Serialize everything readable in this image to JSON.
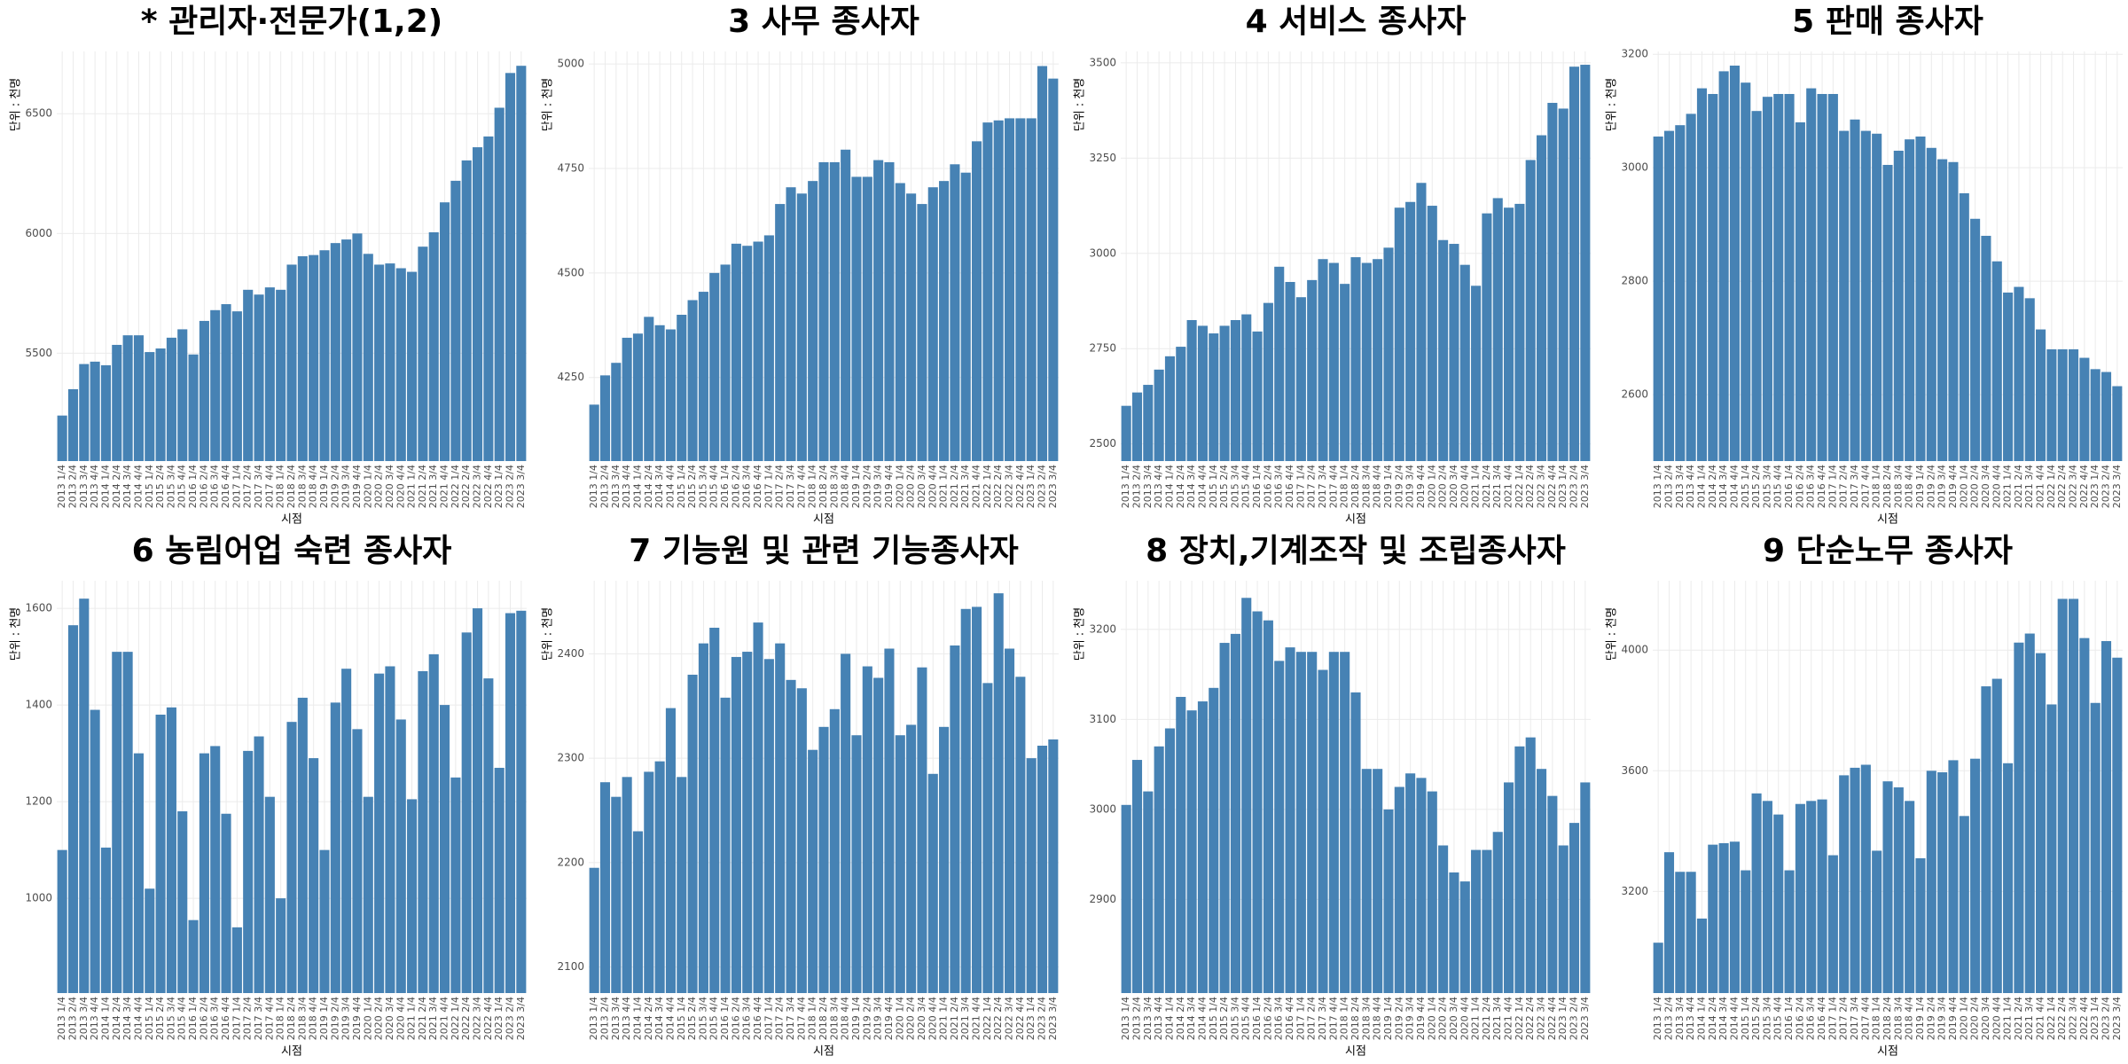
{
  "chart_data": [
    {
      "type": "bar",
      "title": "* 관리자·전문가(1,2)",
      "y_label": "단위 : 천명",
      "x_label": "시점",
      "categories": [
        "2013 1/4",
        "2013 2/4",
        "2013 3/4",
        "2013 4/4",
        "2014 1/4",
        "2014 2/4",
        "2014 3/4",
        "2014 4/4",
        "2015 1/4",
        "2015 2/4",
        "2015 3/4",
        "2015 4/4",
        "2016 1/4",
        "2016 2/4",
        "2016 3/4",
        "2016 4/4",
        "2017 1/4",
        "2017 2/4",
        "2017 3/4",
        "2017 4/4",
        "2018 1/4",
        "2018 2/4",
        "2018 3/4",
        "2018 4/4",
        "2019 1/4",
        "2019 2/4",
        "2019 3/4",
        "2019 4/4",
        "2020 1/4",
        "2020 2/4",
        "2020 3/4",
        "2020 4/4",
        "2021 1/4",
        "2021 2/4",
        "2021 3/4",
        "2021 4/4",
        "2022 1/4",
        "2022 2/4",
        "2022 3/4",
        "2022 4/4",
        "2023 1/4",
        "2023 2/4",
        "2023 3/4"
      ],
      "values": [
        5240,
        5350,
        5455,
        5465,
        5450,
        5535,
        5575,
        5575,
        5505,
        5520,
        5565,
        5600,
        5495,
        5635,
        5680,
        5705,
        5675,
        5765,
        5745,
        5775,
        5765,
        5870,
        5905,
        5910,
        5930,
        5960,
        5975,
        6000,
        5915,
        5870,
        5875,
        5855,
        5840,
        5945,
        6005,
        6130,
        6220,
        6305,
        6360,
        6405,
        6525,
        6670,
        6700
      ],
      "color": "#4682b4",
      "ylim": [
        5050,
        6760
      ],
      "yticks": [
        5500,
        6000,
        6500
      ],
      "grid": true
    },
    {
      "type": "bar",
      "title": "3 사무 종사자",
      "y_label": "단위 : 천명",
      "x_label": "시점",
      "categories": [
        "2013 1/4",
        "2013 2/4",
        "2013 3/4",
        "2013 4/4",
        "2014 1/4",
        "2014 2/4",
        "2014 3/4",
        "2014 4/4",
        "2015 1/4",
        "2015 2/4",
        "2015 3/4",
        "2015 4/4",
        "2016 1/4",
        "2016 2/4",
        "2016 3/4",
        "2016 4/4",
        "2017 1/4",
        "2017 2/4",
        "2017 3/4",
        "2017 4/4",
        "2018 1/4",
        "2018 2/4",
        "2018 3/4",
        "2018 4/4",
        "2019 1/4",
        "2019 2/4",
        "2019 3/4",
        "2019 4/4",
        "2020 1/4",
        "2020 2/4",
        "2020 3/4",
        "2020 4/4",
        "2021 1/4",
        "2021 2/4",
        "2021 3/4",
        "2021 4/4",
        "2022 1/4",
        "2022 2/4",
        "2022 3/4",
        "2022 4/4",
        "2023 1/4",
        "2023 2/4",
        "2023 3/4"
      ],
      "values": [
        4185,
        4255,
        4285,
        4345,
        4355,
        4395,
        4375,
        4365,
        4400,
        4435,
        4455,
        4500,
        4520,
        4570,
        4565,
        4575,
        4590,
        4665,
        4705,
        4690,
        4720,
        4765,
        4765,
        4795,
        4730,
        4730,
        4770,
        4765,
        4715,
        4690,
        4665,
        4705,
        4720,
        4760,
        4740,
        4815,
        4860,
        4865,
        4870,
        4870,
        4870,
        4995,
        4965
      ],
      "color": "#4682b4",
      "ylim": [
        4050,
        5030
      ],
      "yticks": [
        4250,
        4500,
        4750,
        5000
      ],
      "grid": true
    },
    {
      "type": "bar",
      "title": "4 서비스 종사자",
      "y_label": "단위 : 천명",
      "x_label": "시점",
      "categories": [
        "2013 1/4",
        "2013 2/4",
        "2013 3/4",
        "2013 4/4",
        "2014 1/4",
        "2014 2/4",
        "2014 3/4",
        "2014 4/4",
        "2015 1/4",
        "2015 2/4",
        "2015 3/4",
        "2015 4/4",
        "2016 1/4",
        "2016 2/4",
        "2016 3/4",
        "2016 4/4",
        "2017 1/4",
        "2017 2/4",
        "2017 3/4",
        "2017 4/4",
        "2018 1/4",
        "2018 2/4",
        "2018 3/4",
        "2018 4/4",
        "2019 1/4",
        "2019 2/4",
        "2019 3/4",
        "2019 4/4",
        "2020 1/4",
        "2020 2/4",
        "2020 3/4",
        "2020 4/4",
        "2021 1/4",
        "2021 2/4",
        "2021 3/4",
        "2021 4/4",
        "2022 1/4",
        "2022 2/4",
        "2022 3/4",
        "2022 4/4",
        "2023 1/4",
        "2023 2/4",
        "2023 3/4"
      ],
      "values": [
        2600,
        2635,
        2655,
        2695,
        2730,
        2755,
        2825,
        2810,
        2790,
        2810,
        2825,
        2840,
        2795,
        2870,
        2965,
        2925,
        2885,
        2930,
        2985,
        2975,
        2920,
        2990,
        2975,
        2985,
        3015,
        3120,
        3135,
        3185,
        3125,
        3035,
        3025,
        2970,
        2915,
        3105,
        3145,
        3120,
        3130,
        3245,
        3310,
        3395,
        3380,
        3490,
        3495
      ],
      "color": "#4682b4",
      "ylim": [
        2455,
        3530
      ],
      "yticks": [
        2500,
        2750,
        3000,
        3250,
        3500
      ],
      "grid": true
    },
    {
      "type": "bar",
      "title": "5 판매 종사자",
      "y_label": "단위 : 천명",
      "x_label": "시점",
      "categories": [
        "2013 1/4",
        "2013 2/4",
        "2013 3/4",
        "2013 4/4",
        "2014 1/4",
        "2014 2/4",
        "2014 3/4",
        "2014 4/4",
        "2015 1/4",
        "2015 2/4",
        "2015 3/4",
        "2015 4/4",
        "2016 1/4",
        "2016 2/4",
        "2016 3/4",
        "2016 4/4",
        "2017 1/4",
        "2017 2/4",
        "2017 3/4",
        "2017 4/4",
        "2018 1/4",
        "2018 2/4",
        "2018 3/4",
        "2018 4/4",
        "2019 1/4",
        "2019 2/4",
        "2019 3/4",
        "2019 4/4",
        "2020 1/4",
        "2020 2/4",
        "2020 3/4",
        "2020 4/4",
        "2021 1/4",
        "2021 2/4",
        "2021 3/4",
        "2021 4/4",
        "2022 1/4",
        "2022 2/4",
        "2022 3/4",
        "2022 4/4",
        "2023 1/4",
        "2023 2/4",
        "2023 3/4"
      ],
      "values": [
        3055,
        3065,
        3075,
        3095,
        3140,
        3130,
        3170,
        3180,
        3150,
        3100,
        3125,
        3130,
        3130,
        3080,
        3140,
        3130,
        3130,
        3065,
        3085,
        3065,
        3060,
        3005,
        3030,
        3050,
        3055,
        3035,
        3015,
        3010,
        2955,
        2910,
        2880,
        2835,
        2780,
        2790,
        2770,
        2715,
        2680,
        2680,
        2680,
        2665,
        2645,
        2640,
        2615
      ],
      "color": "#4682b4",
      "ylim": [
        2483,
        3205
      ],
      "yticks": [
        2600,
        2800,
        3000,
        3200
      ],
      "grid": true
    },
    {
      "type": "bar",
      "title": "6 농림어업 숙련 종사자",
      "y_label": "단위 : 천명",
      "x_label": "시점",
      "categories": [
        "2013 1/4",
        "2013 2/4",
        "2013 3/4",
        "2013 4/4",
        "2014 1/4",
        "2014 2/4",
        "2014 3/4",
        "2014 4/4",
        "2015 1/4",
        "2015 2/4",
        "2015 3/4",
        "2015 4/4",
        "2016 1/4",
        "2016 2/4",
        "2016 3/4",
        "2016 4/4",
        "2017 1/4",
        "2017 2/4",
        "2017 3/4",
        "2017 4/4",
        "2018 1/4",
        "2018 2/4",
        "2018 3/4",
        "2018 4/4",
        "2019 1/4",
        "2019 2/4",
        "2019 3/4",
        "2019 4/4",
        "2020 1/4",
        "2020 2/4",
        "2020 3/4",
        "2020 4/4",
        "2021 1/4",
        "2021 2/4",
        "2021 3/4",
        "2021 4/4",
        "2022 1/4",
        "2022 2/4",
        "2022 3/4",
        "2022 4/4",
        "2023 1/4",
        "2023 2/4",
        "2023 3/4"
      ],
      "values": [
        1100,
        1565,
        1620,
        1390,
        1105,
        1510,
        1510,
        1300,
        1020,
        1380,
        1395,
        1180,
        955,
        1300,
        1315,
        1175,
        940,
        1305,
        1335,
        1210,
        1000,
        1365,
        1415,
        1290,
        1100,
        1405,
        1475,
        1350,
        1210,
        1465,
        1480,
        1370,
        1205,
        1470,
        1505,
        1400,
        1250,
        1550,
        1600,
        1455,
        1270,
        1590,
        1595
      ],
      "color": "#4682b4",
      "ylim": [
        804,
        1657
      ],
      "yticks": [
        1000,
        1200,
        1400,
        1600
      ],
      "grid": true
    },
    {
      "type": "bar",
      "title": "7 기능원 및 관련 기능종사자",
      "y_label": "단위 : 천명",
      "x_label": "시점",
      "categories": [
        "2013 1/4",
        "2013 2/4",
        "2013 3/4",
        "2013 4/4",
        "2014 1/4",
        "2014 2/4",
        "2014 3/4",
        "2014 4/4",
        "2015 1/4",
        "2015 2/4",
        "2015 3/4",
        "2015 4/4",
        "2016 1/4",
        "2016 2/4",
        "2016 3/4",
        "2016 4/4",
        "2017 1/4",
        "2017 2/4",
        "2017 3/4",
        "2017 4/4",
        "2018 1/4",
        "2018 2/4",
        "2018 3/4",
        "2018 4/4",
        "2019 1/4",
        "2019 2/4",
        "2019 3/4",
        "2019 4/4",
        "2020 1/4",
        "2020 2/4",
        "2020 3/4",
        "2020 4/4",
        "2021 1/4",
        "2021 2/4",
        "2021 3/4",
        "2021 4/4",
        "2022 1/4",
        "2022 2/4",
        "2022 3/4",
        "2022 4/4",
        "2023 1/4",
        "2023 2/4",
        "2023 3/4"
      ],
      "values": [
        2195,
        2277,
        2263,
        2282,
        2230,
        2287,
        2297,
        2348,
        2282,
        2380,
        2410,
        2425,
        2358,
        2397,
        2402,
        2430,
        2395,
        2410,
        2375,
        2367,
        2308,
        2330,
        2347,
        2400,
        2322,
        2388,
        2377,
        2405,
        2322,
        2332,
        2387,
        2285,
        2330,
        2408,
        2443,
        2445,
        2372,
        2458,
        2405,
        2378,
        2300,
        2312,
        2318
      ],
      "color": "#4682b4",
      "ylim": [
        2075,
        2470
      ],
      "yticks": [
        2100,
        2200,
        2300,
        2400
      ],
      "grid": true
    },
    {
      "type": "bar",
      "title": "8 장치,기계조작 및 조립종사자",
      "y_label": "단위 : 천명",
      "x_label": "시점",
      "categories": [
        "2013 1/4",
        "2013 2/4",
        "2013 3/4",
        "2013 4/4",
        "2014 1/4",
        "2014 2/4",
        "2014 3/4",
        "2014 4/4",
        "2015 1/4",
        "2015 2/4",
        "2015 3/4",
        "2015 4/4",
        "2016 1/4",
        "2016 2/4",
        "2016 3/4",
        "2016 4/4",
        "2017 1/4",
        "2017 2/4",
        "2017 3/4",
        "2017 4/4",
        "2018 1/4",
        "2018 2/4",
        "2018 3/4",
        "2018 4/4",
        "2019 1/4",
        "2019 2/4",
        "2019 3/4",
        "2019 4/4",
        "2020 1/4",
        "2020 2/4",
        "2020 3/4",
        "2020 4/4",
        "2021 1/4",
        "2021 2/4",
        "2021 3/4",
        "2021 4/4",
        "2022 1/4",
        "2022 2/4",
        "2022 3/4",
        "2022 4/4",
        "2023 1/4",
        "2023 2/4",
        "2023 3/4"
      ],
      "values": [
        3005,
        3055,
        3020,
        3070,
        3090,
        3125,
        3110,
        3120,
        3135,
        3185,
        3195,
        3235,
        3220,
        3210,
        3165,
        3180,
        3175,
        3175,
        3155,
        3175,
        3175,
        3130,
        3045,
        3045,
        3000,
        3025,
        3040,
        3035,
        3020,
        2960,
        2930,
        2920,
        2955,
        2955,
        2975,
        3030,
        3070,
        3080,
        3045,
        3015,
        2960,
        2985,
        3030
      ],
      "color": "#4682b4",
      "ylim": [
        2796,
        3254
      ],
      "yticks": [
        2900,
        3000,
        3100,
        3200
      ],
      "grid": true
    },
    {
      "type": "bar",
      "title": "9 단순노무 종사자",
      "y_label": "단위 : 천명",
      "x_label": "시점",
      "categories": [
        "2013 1/4",
        "2013 2/4",
        "2013 3/4",
        "2013 4/4",
        "2014 1/4",
        "2014 2/4",
        "2014 3/4",
        "2014 4/4",
        "2015 1/4",
        "2015 2/4",
        "2015 3/4",
        "2015 4/4",
        "2016 1/4",
        "2016 2/4",
        "2016 3/4",
        "2016 4/4",
        "2017 1/4",
        "2017 2/4",
        "2017 3/4",
        "2017 4/4",
        "2018 1/4",
        "2018 2/4",
        "2018 3/4",
        "2018 4/4",
        "2019 1/4",
        "2019 2/4",
        "2019 3/4",
        "2019 4/4",
        "2020 1/4",
        "2020 2/4",
        "2020 3/4",
        "2020 4/4",
        "2021 1/4",
        "2021 2/4",
        "2021 3/4",
        "2021 4/4",
        "2022 1/4",
        "2022 2/4",
        "2022 3/4",
        "2022 4/4",
        "2023 1/4",
        "2023 2/4",
        "2023 3/4"
      ],
      "values": [
        3030,
        3330,
        3265,
        3265,
        3110,
        3355,
        3360,
        3365,
        3270,
        3525,
        3500,
        3455,
        3270,
        3490,
        3500,
        3505,
        3320,
        3585,
        3610,
        3620,
        3335,
        3565,
        3545,
        3500,
        3310,
        3600,
        3595,
        3635,
        3450,
        3640,
        3880,
        3905,
        3625,
        4025,
        4055,
        3990,
        3820,
        4170,
        4170,
        4040,
        3825,
        4030,
        3975
      ],
      "color": "#4682b4",
      "ylim": [
        2863,
        4230
      ],
      "yticks": [
        3200,
        3600,
        4000
      ],
      "grid": true
    }
  ]
}
